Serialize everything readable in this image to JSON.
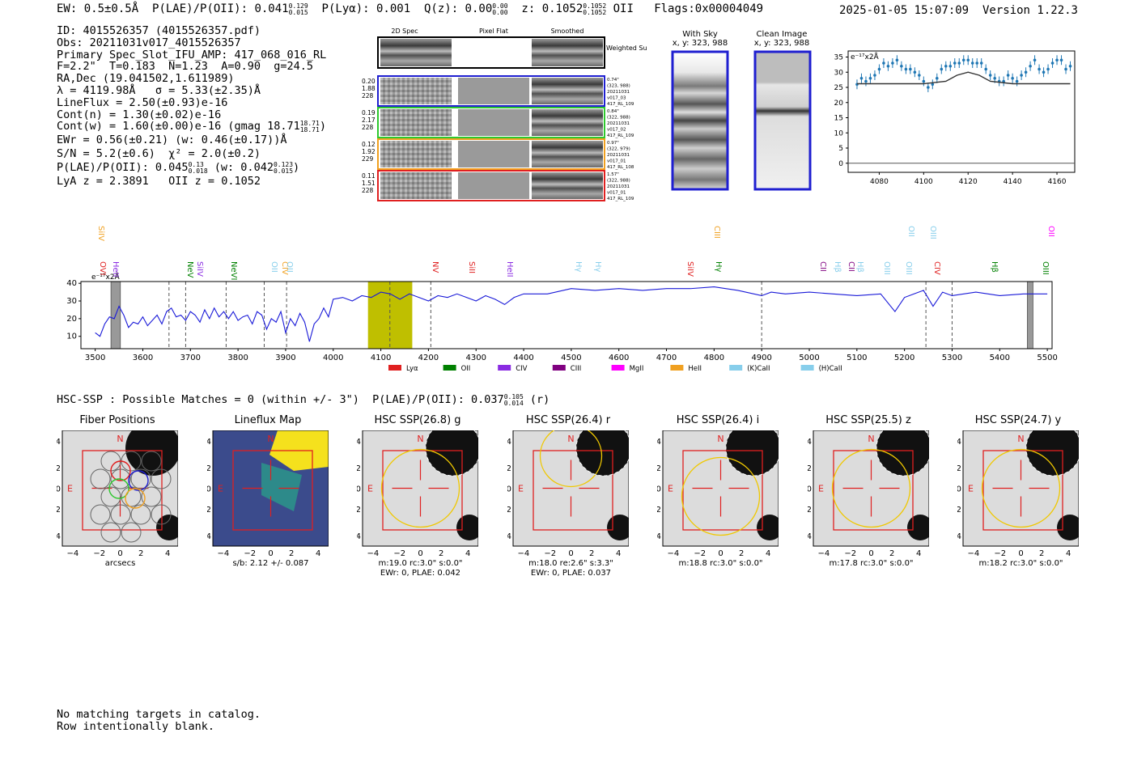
{
  "header": {
    "ew": "EW: 0.5±0.5Å",
    "plae_label": "P(LAE)/P(OII): 0.041",
    "plae_hi": "0.129",
    "plae_lo": "0.015",
    "plya": "P(Lyα): 0.001",
    "qz_label": "Q(z): 0.00",
    "qz_hi": "0.00",
    "qz_lo": "0.00",
    "z_label": "z: 0.1052",
    "z_hi": "0.1052",
    "z_lo": "0.1052",
    "z_type": "OII",
    "flags": "Flags:0x00004049",
    "datetime": "2025-01-05 15:07:09",
    "version": "Version 1.22.3"
  },
  "info": {
    "id": "ID: 4015526357 (4015526357.pdf)",
    "obs": "Obs: 20211031v017_4015526357",
    "slot": "Primary Spec_Slot_IFU_AMP: 417_068_016_RL",
    "params": "F=2.2\"  T=0.183  N=1.23  A=0.90  g=24.5",
    "radec": "RA,Dec (19.041502,1.611989)",
    "lambda": "λ = 4119.98Å   σ = 5.33(±2.35)Å",
    "lineflux": "LineFlux = 2.50(±0.93)e-16",
    "contn": "Cont(n) = 1.30(±0.02)e-16",
    "contw": "Cont(w) = 1.60(±0.00)e-16 (gmag 18.71",
    "contw_hi": "18.71",
    "contw_lo": "18.71",
    "ewr": "EWr = 0.56(±0.21) (w: 0.46(±0.17))Å",
    "sn": "S/N = 5.2(±0.6)  χ² = 2.0(±0.2)",
    "plae": "P(LAE)/P(OII): 0.045",
    "plae_hi": "0.13",
    "plae_lo": "0.018",
    "plae_w": "(w: 0.042",
    "plae_w_hi": "0.123",
    "plae_w_lo": "0.015",
    "lya_z": "LyA z = 2.3891   OII z = 0.1052"
  },
  "cutouts": {
    "col_titles": [
      "2D Spec",
      "Pixel Flat",
      "Smoothed"
    ],
    "weighted_sum": "Weighted\nSum",
    "rows": [
      {
        "left": [
          "0.20",
          "1.88",
          "228"
        ],
        "right": [
          "0.74\"",
          "(323, 988)",
          "20211031",
          "v017_03",
          "417_RL_109"
        ],
        "color": "#1f1fd0"
      },
      {
        "left": [
          "0.19",
          "2.17",
          "228"
        ],
        "right": [
          "0.84\"",
          "(322, 988)",
          "20211031",
          "v017_02",
          "417_RL_109"
        ],
        "color": "#2ec82e"
      },
      {
        "left": [
          "0.12",
          "1.92",
          "229"
        ],
        "right": [
          "0.97\"",
          "(322, 979)",
          "20211031",
          "v017_01",
          "417_RL_108"
        ],
        "color": "#f0a020"
      },
      {
        "left": [
          "0.11",
          "1.51",
          "228"
        ],
        "right": [
          "1.57\"",
          "(322, 988)",
          "20211031",
          "v017_01",
          "417_RL_109"
        ],
        "color": "#e02020"
      }
    ]
  },
  "sky_panels": [
    {
      "title": "With Sky",
      "sub": "x, y: 323, 988"
    },
    {
      "title": "Clean Image",
      "sub": "x, y: 323, 988"
    }
  ],
  "spectrum_labels": [
    {
      "name": "SiIV",
      "color": "#f0a020",
      "row": 0
    },
    {
      "name": "OVI",
      "color": "#e02020",
      "row": 1
    },
    {
      "name": "HeII",
      "color": "#8a2be2",
      "row": 1
    },
    {
      "name": "NeV",
      "color": "#008000",
      "row": 1
    },
    {
      "name": "SiIV",
      "color": "#8a2be2",
      "row": 1
    },
    {
      "name": "NeVI",
      "color": "#008000",
      "row": 1
    },
    {
      "name": "OII",
      "color": "#87ceeb",
      "row": 1
    },
    {
      "name": "CIV",
      "color": "#f0a020",
      "row": 1
    },
    {
      "name": "OII",
      "color": "#87ceeb",
      "row": 1
    },
    {
      "name": "NV",
      "color": "#e02020",
      "row": 1
    },
    {
      "name": "SiII",
      "color": "#e02020",
      "row": 1
    },
    {
      "name": "HeII",
      "color": "#8a2be2",
      "row": 1
    },
    {
      "name": "Hγ",
      "color": "#87ceeb",
      "row": 1
    },
    {
      "name": "Hγ",
      "color": "#87ceeb",
      "row": 1
    },
    {
      "name": "SiIV",
      "color": "#e02020",
      "row": 1
    },
    {
      "name": "CIII",
      "color": "#f0a020",
      "row": 0
    },
    {
      "name": "Hγ",
      "color": "#008000",
      "row": 1
    },
    {
      "name": "CII",
      "color": "#800080",
      "row": 1
    },
    {
      "name": "Hβ",
      "color": "#87ceeb",
      "row": 1
    },
    {
      "name": "CII",
      "color": "#800080",
      "row": 1
    },
    {
      "name": "Hβ",
      "color": "#87ceeb",
      "row": 1
    },
    {
      "name": "OIII",
      "color": "#87ceeb",
      "row": 1
    },
    {
      "name": "OII",
      "color": "#87ceeb",
      "row": 0
    },
    {
      "name": "OIII",
      "color": "#87ceeb",
      "row": 1
    },
    {
      "name": "OIII",
      "color": "#87ceeb",
      "row": 0
    },
    {
      "name": "CIV",
      "color": "#e02020",
      "row": 1
    },
    {
      "name": "Hβ",
      "color": "#008000",
      "row": 1
    },
    {
      "name": "OII",
      "color": "#ff00ff",
      "row": 0
    },
    {
      "name": "OIII",
      "color": "#008000",
      "row": 1
    }
  ],
  "legend": [
    {
      "name": "Lyα",
      "color": "#e02020"
    },
    {
      "name": "OII",
      "color": "#008000"
    },
    {
      "name": "CIV",
      "color": "#8a2be2"
    },
    {
      "name": "CIII",
      "color": "#800080"
    },
    {
      "name": "MgII",
      "color": "#ff00ff"
    },
    {
      "name": "HeII",
      "color": "#f0a020"
    },
    {
      "name": "(K)CaII",
      "color": "#87ceeb"
    },
    {
      "name": "(H)CaII",
      "color": "#87ceeb"
    }
  ],
  "hsc": {
    "header": "HSC-SSP : Possible Matches = 0 (within +/- 3\")  P(LAE)/P(OII): 0.037",
    "header_hi": "0.105",
    "header_lo": "0.014",
    "header_band": "(r)",
    "panels": [
      {
        "title": "Fiber Positions",
        "cap1": "arcsecs",
        "cap2": ""
      },
      {
        "title": "Lineflux Map",
        "cap1": "s/b: 2.12 +/- 0.087",
        "cap2": ""
      },
      {
        "title": "HSC SSP(26.8) g",
        "cap1": "m:19.0 rc:3.0\"  s:0.0\"",
        "cap2": "EWr: 0, PLAE: 0.042"
      },
      {
        "title": "HSC SSP(26.4) r",
        "cap1": "m:18.0  re:2.6\"  s:3.3\"",
        "cap2": "EWr: 0, PLAE: 0.037"
      },
      {
        "title": "HSC SSP(26.4) i",
        "cap1": "m:18.8 rc:3.0\"  s:0.0\"",
        "cap2": ""
      },
      {
        "title": "HSC SSP(25.5) z",
        "cap1": "m:17.8 rc:3.0\"  s:0.0\"",
        "cap2": ""
      },
      {
        "title": "HSC SSP(24.7) y",
        "cap1": "m:18.2 rc:3.0\"  s:0.0\"",
        "cap2": ""
      }
    ],
    "compass_n": "N",
    "compass_e": "E",
    "axis_ticks": [
      "−4",
      "−2",
      "0",
      "2",
      "4"
    ]
  },
  "footer": {
    "line1": "No matching targets in catalog.",
    "line2": "Row intentionally blank."
  },
  "chart_data": [
    {
      "type": "line",
      "title": "",
      "ylabel": "e⁻¹⁷x2Å",
      "xlim": [
        3470,
        5510
      ],
      "ylim": [
        3,
        41
      ],
      "xticks": [
        3500,
        3600,
        3700,
        3800,
        3900,
        4000,
        4100,
        4200,
        4300,
        4400,
        4500,
        4600,
        4700,
        4800,
        4900,
        5000,
        5100,
        5200,
        5300,
        5400,
        5500
      ],
      "yticks": [
        10,
        20,
        30,
        40
      ],
      "dashed_lines": [
        3655,
        3690,
        3775,
        3855,
        3902,
        4119,
        4205,
        4900,
        5245,
        5300
      ],
      "highlight_range": [
        4073,
        4166
      ],
      "masked_ranges": [
        [
          3533,
          3553
        ],
        [
          5458,
          5470
        ]
      ],
      "series": [
        {
          "x": [
            3500,
            3510,
            3520,
            3530,
            3540,
            3550,
            3560,
            3570,
            3580,
            3590,
            3600,
            3610,
            3620,
            3630,
            3640,
            3650,
            3660,
            3670,
            3680,
            3690,
            3700,
            3710,
            3720,
            3730,
            3740,
            3750,
            3760,
            3770,
            3780,
            3790,
            3800,
            3810,
            3820,
            3830,
            3840,
            3850,
            3860,
            3870,
            3880,
            3890,
            3900,
            3910,
            3920,
            3930,
            3940,
            3950,
            3960,
            3970,
            3980,
            3990,
            4000,
            4020,
            4040,
            4060,
            4080,
            4100,
            4120,
            4140,
            4160,
            4180,
            4200,
            4220,
            4240,
            4260,
            4280,
            4300,
            4320,
            4340,
            4360,
            4380,
            4400,
            4450,
            4500,
            4550,
            4600,
            4650,
            4700,
            4750,
            4800,
            4850,
            4900,
            4920,
            4950,
            5000,
            5050,
            5100,
            5150,
            5180,
            5200,
            5220,
            5240,
            5260,
            5280,
            5300,
            5350,
            5400,
            5450,
            5500
          ],
          "y": [
            12,
            10,
            17,
            21,
            20,
            27,
            22,
            15,
            18,
            17,
            21,
            16,
            19,
            22,
            17,
            24,
            26,
            21,
            22,
            19,
            24,
            22,
            18,
            25,
            20,
            26,
            21,
            24,
            20,
            24,
            19,
            21,
            22,
            17,
            24,
            22,
            14,
            20,
            18,
            24,
            12,
            20,
            16,
            23,
            18,
            7,
            17,
            20,
            26,
            21,
            31,
            32,
            30,
            33,
            32,
            35,
            34,
            31,
            34,
            32,
            30,
            33,
            32,
            34,
            32,
            30,
            33,
            31,
            28,
            32,
            34,
            34,
            37,
            36,
            37,
            36,
            37,
            37,
            38,
            36,
            33,
            35,
            34,
            35,
            34,
            33,
            34,
            24,
            32,
            34,
            36,
            27,
            35,
            33,
            35,
            33,
            34,
            34
          ]
        }
      ]
    },
    {
      "type": "scatter",
      "title": "",
      "ylabel": "e⁻¹⁷x2Å",
      "xlim": [
        4066,
        4168
      ],
      "ylim": [
        -3,
        37
      ],
      "xticks": [
        4080,
        4100,
        4120,
        4140,
        4160
      ],
      "yticks": [
        0,
        5,
        10,
        15,
        20,
        25,
        30,
        35
      ],
      "series": [
        {
          "name": "data",
          "x": [
            4070,
            4072,
            4074,
            4076,
            4078,
            4080,
            4082,
            4084,
            4086,
            4088,
            4090,
            4092,
            4094,
            4096,
            4098,
            4100,
            4102,
            4104,
            4106,
            4108,
            4110,
            4112,
            4114,
            4116,
            4118,
            4120,
            4122,
            4124,
            4126,
            4128,
            4130,
            4132,
            4134,
            4136,
            4138,
            4140,
            4142,
            4144,
            4146,
            4148,
            4150,
            4152,
            4154,
            4156,
            4158,
            4160,
            4162,
            4164,
            4166
          ],
          "y": [
            26,
            28,
            27,
            28,
            29,
            31,
            33,
            32,
            33,
            34,
            32,
            31,
            31,
            30,
            29,
            27,
            25,
            26,
            28,
            31,
            32,
            32,
            33,
            33,
            34,
            34,
            33,
            33,
            33,
            31,
            29,
            28,
            27,
            27,
            29,
            28,
            27,
            29,
            30,
            32,
            34,
            31,
            30,
            31,
            33,
            34,
            34,
            31,
            32
          ]
        },
        {
          "name": "model",
          "type": "line",
          "x": [
            4070,
            4100,
            4110,
            4115,
            4120,
            4125,
            4130,
            4140,
            4166
          ],
          "y": [
            26.2,
            26.2,
            27,
            29,
            30,
            29,
            27,
            26.2,
            26.2
          ]
        }
      ]
    }
  ]
}
